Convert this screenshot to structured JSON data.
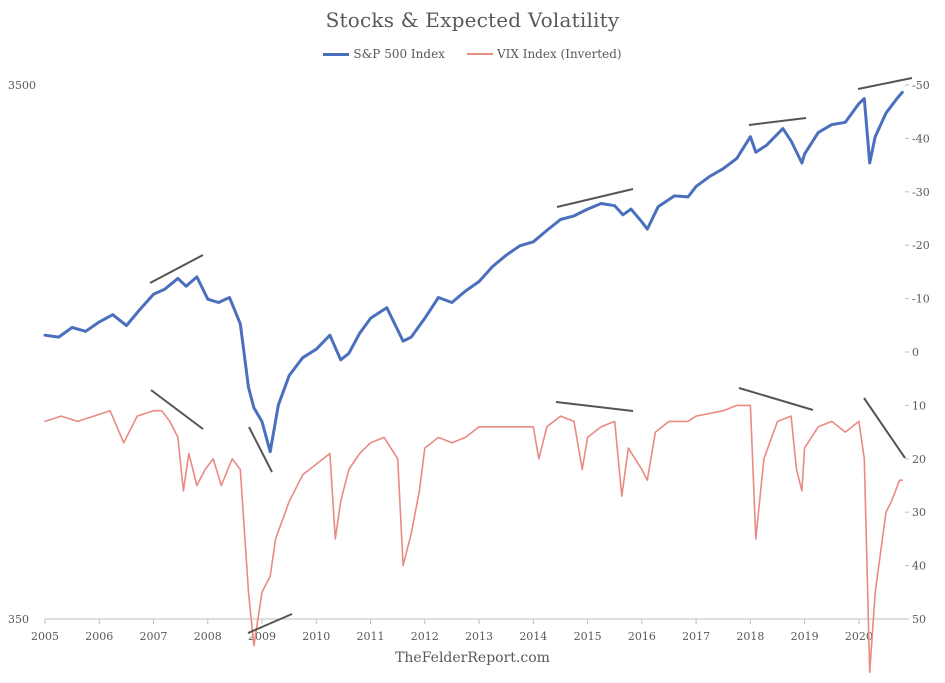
{
  "title": "Stocks & Expected Volatility",
  "footer": "TheFelderReport.com",
  "legend": [
    {
      "name": "S&P 500 Index",
      "color": "#4a6fbd"
    },
    {
      "name": "VIX Index (Inverted)",
      "color": "#ea8a84"
    }
  ],
  "chart_data": {
    "type": "line",
    "title": "Stocks & Expected Volatility",
    "x_ticks": [
      "2005",
      "2006",
      "2007",
      "2008",
      "2009",
      "2010",
      "2011",
      "2012",
      "2013",
      "2014",
      "2015",
      "2016",
      "2017",
      "2018",
      "2019",
      "2020"
    ],
    "xlim": [
      2005,
      2020.85
    ],
    "left_axis": {
      "scale": "log",
      "range": [
        350,
        3500
      ],
      "tick_labels": [
        "3500",
        "350"
      ]
    },
    "right_axis": {
      "note": "inverted VIX",
      "range": [
        -50,
        50
      ],
      "tick_labels": [
        "-50",
        "-40",
        "-30",
        "-20",
        "-10",
        "0",
        "10",
        "20",
        "30",
        "40",
        "50"
      ]
    },
    "series": [
      {
        "name": "S&P 500 Index",
        "axis": "left",
        "color": "#4a6fbd",
        "x": [
          2005.0,
          2005.25,
          2005.5,
          2005.75,
          2006.0,
          2006.25,
          2006.5,
          2006.75,
          2007.0,
          2007.2,
          2007.45,
          2007.6,
          2007.8,
          2008.0,
          2008.2,
          2008.4,
          2008.6,
          2008.75,
          2008.85,
          2009.0,
          2009.15,
          2009.3,
          2009.5,
          2009.75,
          2010.0,
          2010.25,
          2010.45,
          2010.6,
          2010.8,
          2011.0,
          2011.3,
          2011.6,
          2011.75,
          2012.0,
          2012.25,
          2012.5,
          2012.75,
          2013.0,
          2013.25,
          2013.5,
          2013.75,
          2014.0,
          2014.25,
          2014.5,
          2014.75,
          2015.0,
          2015.25,
          2015.5,
          2015.65,
          2015.8,
          2016.0,
          2016.1,
          2016.3,
          2016.6,
          2016.85,
          2017.0,
          2017.25,
          2017.5,
          2017.75,
          2018.0,
          2018.1,
          2018.3,
          2018.6,
          2018.75,
          2018.95,
          2019.0,
          2019.25,
          2019.5,
          2019.75,
          2020.0,
          2020.1,
          2020.2,
          2020.3,
          2020.5,
          2020.7,
          2020.8
        ],
        "values": [
          1190,
          1180,
          1230,
          1210,
          1260,
          1300,
          1240,
          1330,
          1420,
          1450,
          1520,
          1470,
          1530,
          1390,
          1370,
          1400,
          1250,
          950,
          870,
          820,
          720,
          880,
          1000,
          1080,
          1120,
          1190,
          1070,
          1100,
          1200,
          1280,
          1340,
          1160,
          1180,
          1280,
          1400,
          1370,
          1440,
          1500,
          1600,
          1680,
          1750,
          1780,
          1870,
          1960,
          1990,
          2050,
          2100,
          2080,
          2000,
          2050,
          1940,
          1880,
          2070,
          2170,
          2160,
          2260,
          2360,
          2440,
          2550,
          2800,
          2620,
          2700,
          2900,
          2750,
          2500,
          2600,
          2850,
          2950,
          2980,
          3230,
          3300,
          2500,
          2800,
          3100,
          3300,
          3390
        ]
      },
      {
        "name": "VIX Index (Inverted)",
        "axis": "right",
        "color": "#ea8a84",
        "x": [
          2005.0,
          2005.3,
          2005.6,
          2005.9,
          2006.2,
          2006.45,
          2006.7,
          2007.0,
          2007.15,
          2007.3,
          2007.45,
          2007.55,
          2007.65,
          2007.8,
          2007.95,
          2008.1,
          2008.25,
          2008.45,
          2008.6,
          2008.75,
          2008.85,
          2009.0,
          2009.15,
          2009.25,
          2009.5,
          2009.75,
          2010.0,
          2010.25,
          2010.35,
          2010.45,
          2010.6,
          2010.8,
          2011.0,
          2011.25,
          2011.5,
          2011.6,
          2011.75,
          2011.9,
          2012.0,
          2012.25,
          2012.5,
          2012.75,
          2013.0,
          2013.5,
          2013.75,
          2014.0,
          2014.1,
          2014.25,
          2014.5,
          2014.75,
          2014.9,
          2015.0,
          2015.25,
          2015.5,
          2015.63,
          2015.75,
          2016.0,
          2016.1,
          2016.25,
          2016.5,
          2016.85,
          2017.0,
          2017.5,
          2017.75,
          2018.0,
          2018.1,
          2018.25,
          2018.5,
          2018.75,
          2018.85,
          2018.95,
          2019.0,
          2019.25,
          2019.5,
          2019.75,
          2020.0,
          2020.1,
          2020.2,
          2020.3,
          2020.5,
          2020.6,
          2020.75,
          2020.8
        ],
        "values": [
          13,
          12,
          13,
          12,
          11,
          17,
          12,
          11,
          11,
          13,
          16,
          26,
          19,
          25,
          22,
          20,
          25,
          20,
          22,
          45,
          55,
          45,
          42,
          35,
          28,
          23,
          21,
          19,
          35,
          28,
          22,
          19,
          17,
          16,
          20,
          40,
          34,
          26,
          18,
          16,
          17,
          16,
          14,
          14,
          14,
          14,
          20,
          14,
          12,
          13,
          22,
          16,
          14,
          13,
          27,
          18,
          22,
          24,
          15,
          13,
          13,
          12,
          11,
          10,
          10,
          35,
          20,
          13,
          12,
          22,
          26,
          18,
          14,
          13,
          15,
          13,
          20,
          60,
          45,
          30,
          28,
          24,
          24
        ]
      }
    ]
  }
}
